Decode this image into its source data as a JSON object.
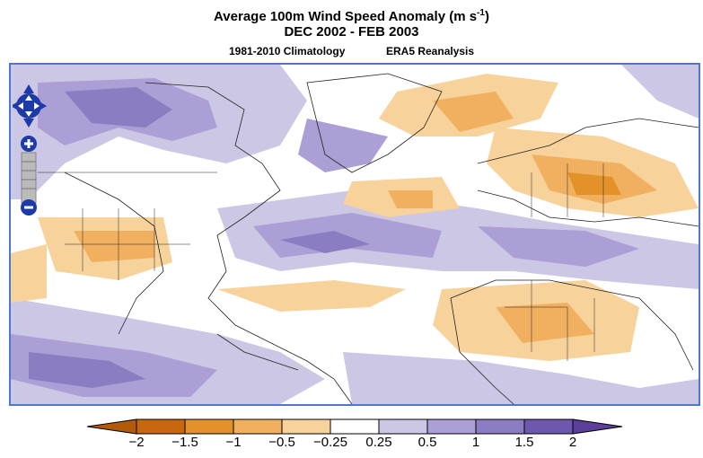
{
  "title": {
    "line1": "Average 100m Wind Speed Anomaly (m s",
    "line1_sup": "-1",
    "line1_end": ")",
    "line2": "DEC 2002 - FEB 2003"
  },
  "subtitle": {
    "left": "1981-2010 Climatology",
    "right": "ERA5 Reanalysis"
  },
  "map_controls": {
    "pan": "pan-control",
    "zoom_in": "+",
    "zoom_out": "−"
  },
  "colorbar": {
    "ticks": [
      "−2",
      "−1.5",
      "−1",
      "−0.5",
      "−0.25",
      "0.25",
      "0.5",
      "1",
      "1.5",
      "2"
    ],
    "colors": [
      "#c8680e",
      "#e3922a",
      "#f0b060",
      "#f8d29b",
      "#ffffff",
      "#cdc7e6",
      "#ab9fd5",
      "#8c7cc2",
      "#6e58ad"
    ],
    "under_color": "#b25a0a",
    "over_color": "#5b3f9a"
  },
  "colors": {
    "frame": "#4b7ac8",
    "control": "#1c3aa8"
  }
}
